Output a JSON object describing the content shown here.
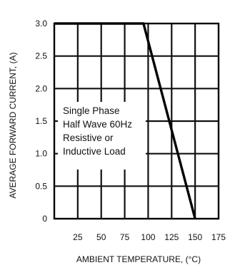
{
  "chart_data": {
    "type": "line",
    "title": "",
    "xlabel": "AMBIENT TEMPERATURE, (°C)",
    "ylabel": "AVERAGE FORWARD CURRENT, (A)",
    "xlim": [
      0,
      175
    ],
    "ylim": [
      0,
      3.0
    ],
    "x_ticks": [
      25,
      50,
      75,
      100,
      125,
      150,
      175
    ],
    "x_tick_labels": [
      "25",
      "50",
      "75",
      "100",
      "125",
      "150",
      "175"
    ],
    "y_ticks": [
      0,
      0.5,
      1.0,
      1.5,
      2.0,
      2.5,
      3.0
    ],
    "y_tick_labels": [
      "0",
      "0.5",
      "1.0",
      "1.5",
      "2.0",
      "2.5",
      "3.0"
    ],
    "grid": true,
    "series": [
      {
        "x": [
          0,
          95,
          150
        ],
        "y": [
          3.0,
          3.0,
          0
        ]
      }
    ],
    "annotation": [
      "Single Phase",
      "Half Wave 60Hz",
      "Resistive or",
      "Inductive Load"
    ]
  }
}
